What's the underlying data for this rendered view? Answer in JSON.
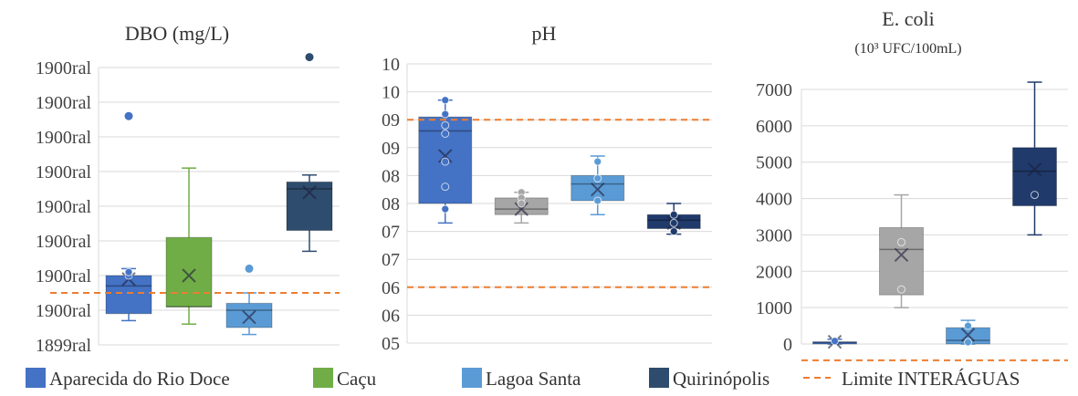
{
  "colors": {
    "aparecida": "#4472C4",
    "cacu": "#70AD47",
    "lagoa": "#5B9BD5",
    "quirinopolis": "#2E4C6D",
    "limit": "#ED7D31",
    "gray": "#A6A6A6",
    "navy": "#1F3A6B",
    "grid": "#D9D9D9"
  },
  "legend": [
    {
      "label": "Aparecida do Rio Doce",
      "color": "#4472C4",
      "kind": "box"
    },
    {
      "label": "Caçu",
      "color": "#70AD47",
      "kind": "box"
    },
    {
      "label": "Lagoa Santa",
      "color": "#5B9BD5",
      "kind": "box"
    },
    {
      "label": "Quirinópolis",
      "color": "#2E4C6D",
      "kind": "box"
    },
    {
      "label": "Limite INTERÁGUAS",
      "color": "#ED7D31",
      "kind": "dash"
    }
  ],
  "chart_data": [
    {
      "type": "box",
      "title": "DBO (mg/L)",
      "subtitle": "",
      "ylim": [
        0,
        8
      ],
      "yticks": [
        0,
        1,
        2,
        3,
        4,
        5,
        6,
        7,
        8
      ],
      "ytick_labels": [
        "1899ral",
        "1900ral",
        "1900ral",
        "1900ral",
        "1900ral",
        "1900ral",
        "1900ral",
        "1900ral",
        "1900ral"
      ],
      "limit": 1.5,
      "grid": true,
      "boxes": [
        {
          "name": "Aparecida do Rio Doce",
          "color": "#4472C4",
          "min": 0.7,
          "q1": 0.9,
          "median": 1.7,
          "q3": 2.0,
          "max": 2.2,
          "mean": 1.9,
          "points": [
            2.0,
            2.1
          ],
          "outliers": [
            6.6
          ]
        },
        {
          "name": "Caçu",
          "color": "#70AD47",
          "min": 0.6,
          "q1": 1.1,
          "median": 1.1,
          "q3": 3.1,
          "max": 5.1,
          "mean": 2.0,
          "points": [],
          "outliers": []
        },
        {
          "name": "Lagoa Santa",
          "color": "#5B9BD5",
          "min": 0.3,
          "q1": 0.5,
          "median": 1.0,
          "q3": 1.2,
          "max": 1.5,
          "mean": 0.8,
          "points": [],
          "outliers": [
            2.2
          ]
        },
        {
          "name": "Quirinópolis",
          "color": "#2E4C6D",
          "min": 2.7,
          "q1": 3.3,
          "median": 4.5,
          "q3": 4.7,
          "max": 4.9,
          "mean": 4.4,
          "points": [],
          "outliers": [
            8.3
          ]
        }
      ]
    },
    {
      "type": "box",
      "title": "pH",
      "subtitle": "",
      "ylim": [
        0,
        10
      ],
      "yticks": [
        0,
        1,
        2,
        3,
        4,
        5,
        6,
        7,
        8,
        9,
        10
      ],
      "ytick_labels": [
        "05",
        "06",
        "06",
        "07",
        "07",
        "08",
        "08",
        "09",
        "09",
        "10",
        "10"
      ],
      "limit_upper": 8.0,
      "limit_lower": 2.0,
      "grid": true,
      "boxes": [
        {
          "name": "Aparecida do Rio Doce",
          "color": "#4472C4",
          "min": 4.3,
          "q1": 5.0,
          "median": 7.6,
          "q3": 8.1,
          "max": 8.7,
          "mean": 6.7,
          "points": [
            8.7,
            8.2,
            7.8,
            7.5,
            6.5,
            5.6,
            4.8
          ],
          "outliers": []
        },
        {
          "name": "Caçu",
          "color": "#A6A6A6",
          "min": 4.3,
          "q1": 4.6,
          "median": 4.8,
          "q3": 5.2,
          "max": 5.4,
          "mean": 4.8,
          "points": [
            5.4,
            5.2,
            5.0
          ],
          "outliers": []
        },
        {
          "name": "Lagoa Santa",
          "color": "#5B9BD5",
          "min": 4.6,
          "q1": 5.1,
          "median": 5.7,
          "q3": 6.0,
          "max": 6.7,
          "mean": 5.5,
          "points": [
            6.5,
            5.9,
            5.1
          ],
          "outliers": []
        },
        {
          "name": "Quirinópolis",
          "color": "#1F3A6B",
          "min": 3.9,
          "q1": 4.1,
          "median": 4.4,
          "q3": 4.6,
          "max": 5.0,
          "mean": 4.3,
          "points": [
            4.6,
            4.3,
            4.0
          ],
          "outliers": []
        }
      ]
    },
    {
      "type": "box",
      "title": "E. coli",
      "subtitle": "(10³ UFC/100mL)",
      "ylim": [
        0,
        7000
      ],
      "yticks": [
        0,
        1000,
        2000,
        3000,
        4000,
        5000,
        6000,
        7000
      ],
      "ytick_labels": [
        "0",
        "1000",
        "2000",
        "3000",
        "4000",
        "5000",
        "6000",
        "7000"
      ],
      "limit": -450,
      "grid": true,
      "boxes": [
        {
          "name": "Aparecida do Rio Doce",
          "color": "#4472C4",
          "min": 0,
          "q1": 0,
          "median": 40,
          "q3": 60,
          "max": 130,
          "mean": 60,
          "points": [
            80
          ],
          "outliers": []
        },
        {
          "name": "Caçu",
          "color": "#A6A6A6",
          "min": 1000,
          "q1": 1350,
          "median": 2600,
          "q3": 3200,
          "max": 4100,
          "mean": 2450,
          "points": [
            2800,
            1500
          ],
          "outliers": []
        },
        {
          "name": "Lagoa Santa",
          "color": "#5B9BD5",
          "min": 0,
          "q1": 0,
          "median": 100,
          "q3": 450,
          "max": 650,
          "mean": 250,
          "points": [
            500,
            50
          ],
          "outliers": []
        },
        {
          "name": "Quirinópolis",
          "color": "#1F3A6B",
          "min": 3000,
          "q1": 3800,
          "median": 4750,
          "q3": 5400,
          "max": 7200,
          "mean": 4800,
          "points": [
            4100
          ],
          "outliers": []
        }
      ]
    }
  ]
}
